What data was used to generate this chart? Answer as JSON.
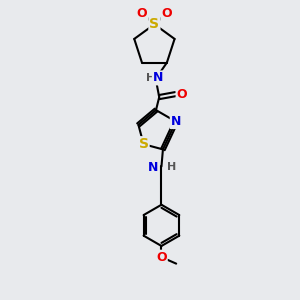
{
  "background_color": "#e8eaed",
  "atom_colors": {
    "C": "#000000",
    "N": "#0000dd",
    "O": "#ee0000",
    "S": "#ccaa00"
  },
  "bond_color": "#000000",
  "bond_width": 1.5,
  "figsize": [
    3.0,
    3.0
  ],
  "dpi": 100,
  "xlim": [
    0,
    10
  ],
  "ylim": [
    0,
    10
  ]
}
